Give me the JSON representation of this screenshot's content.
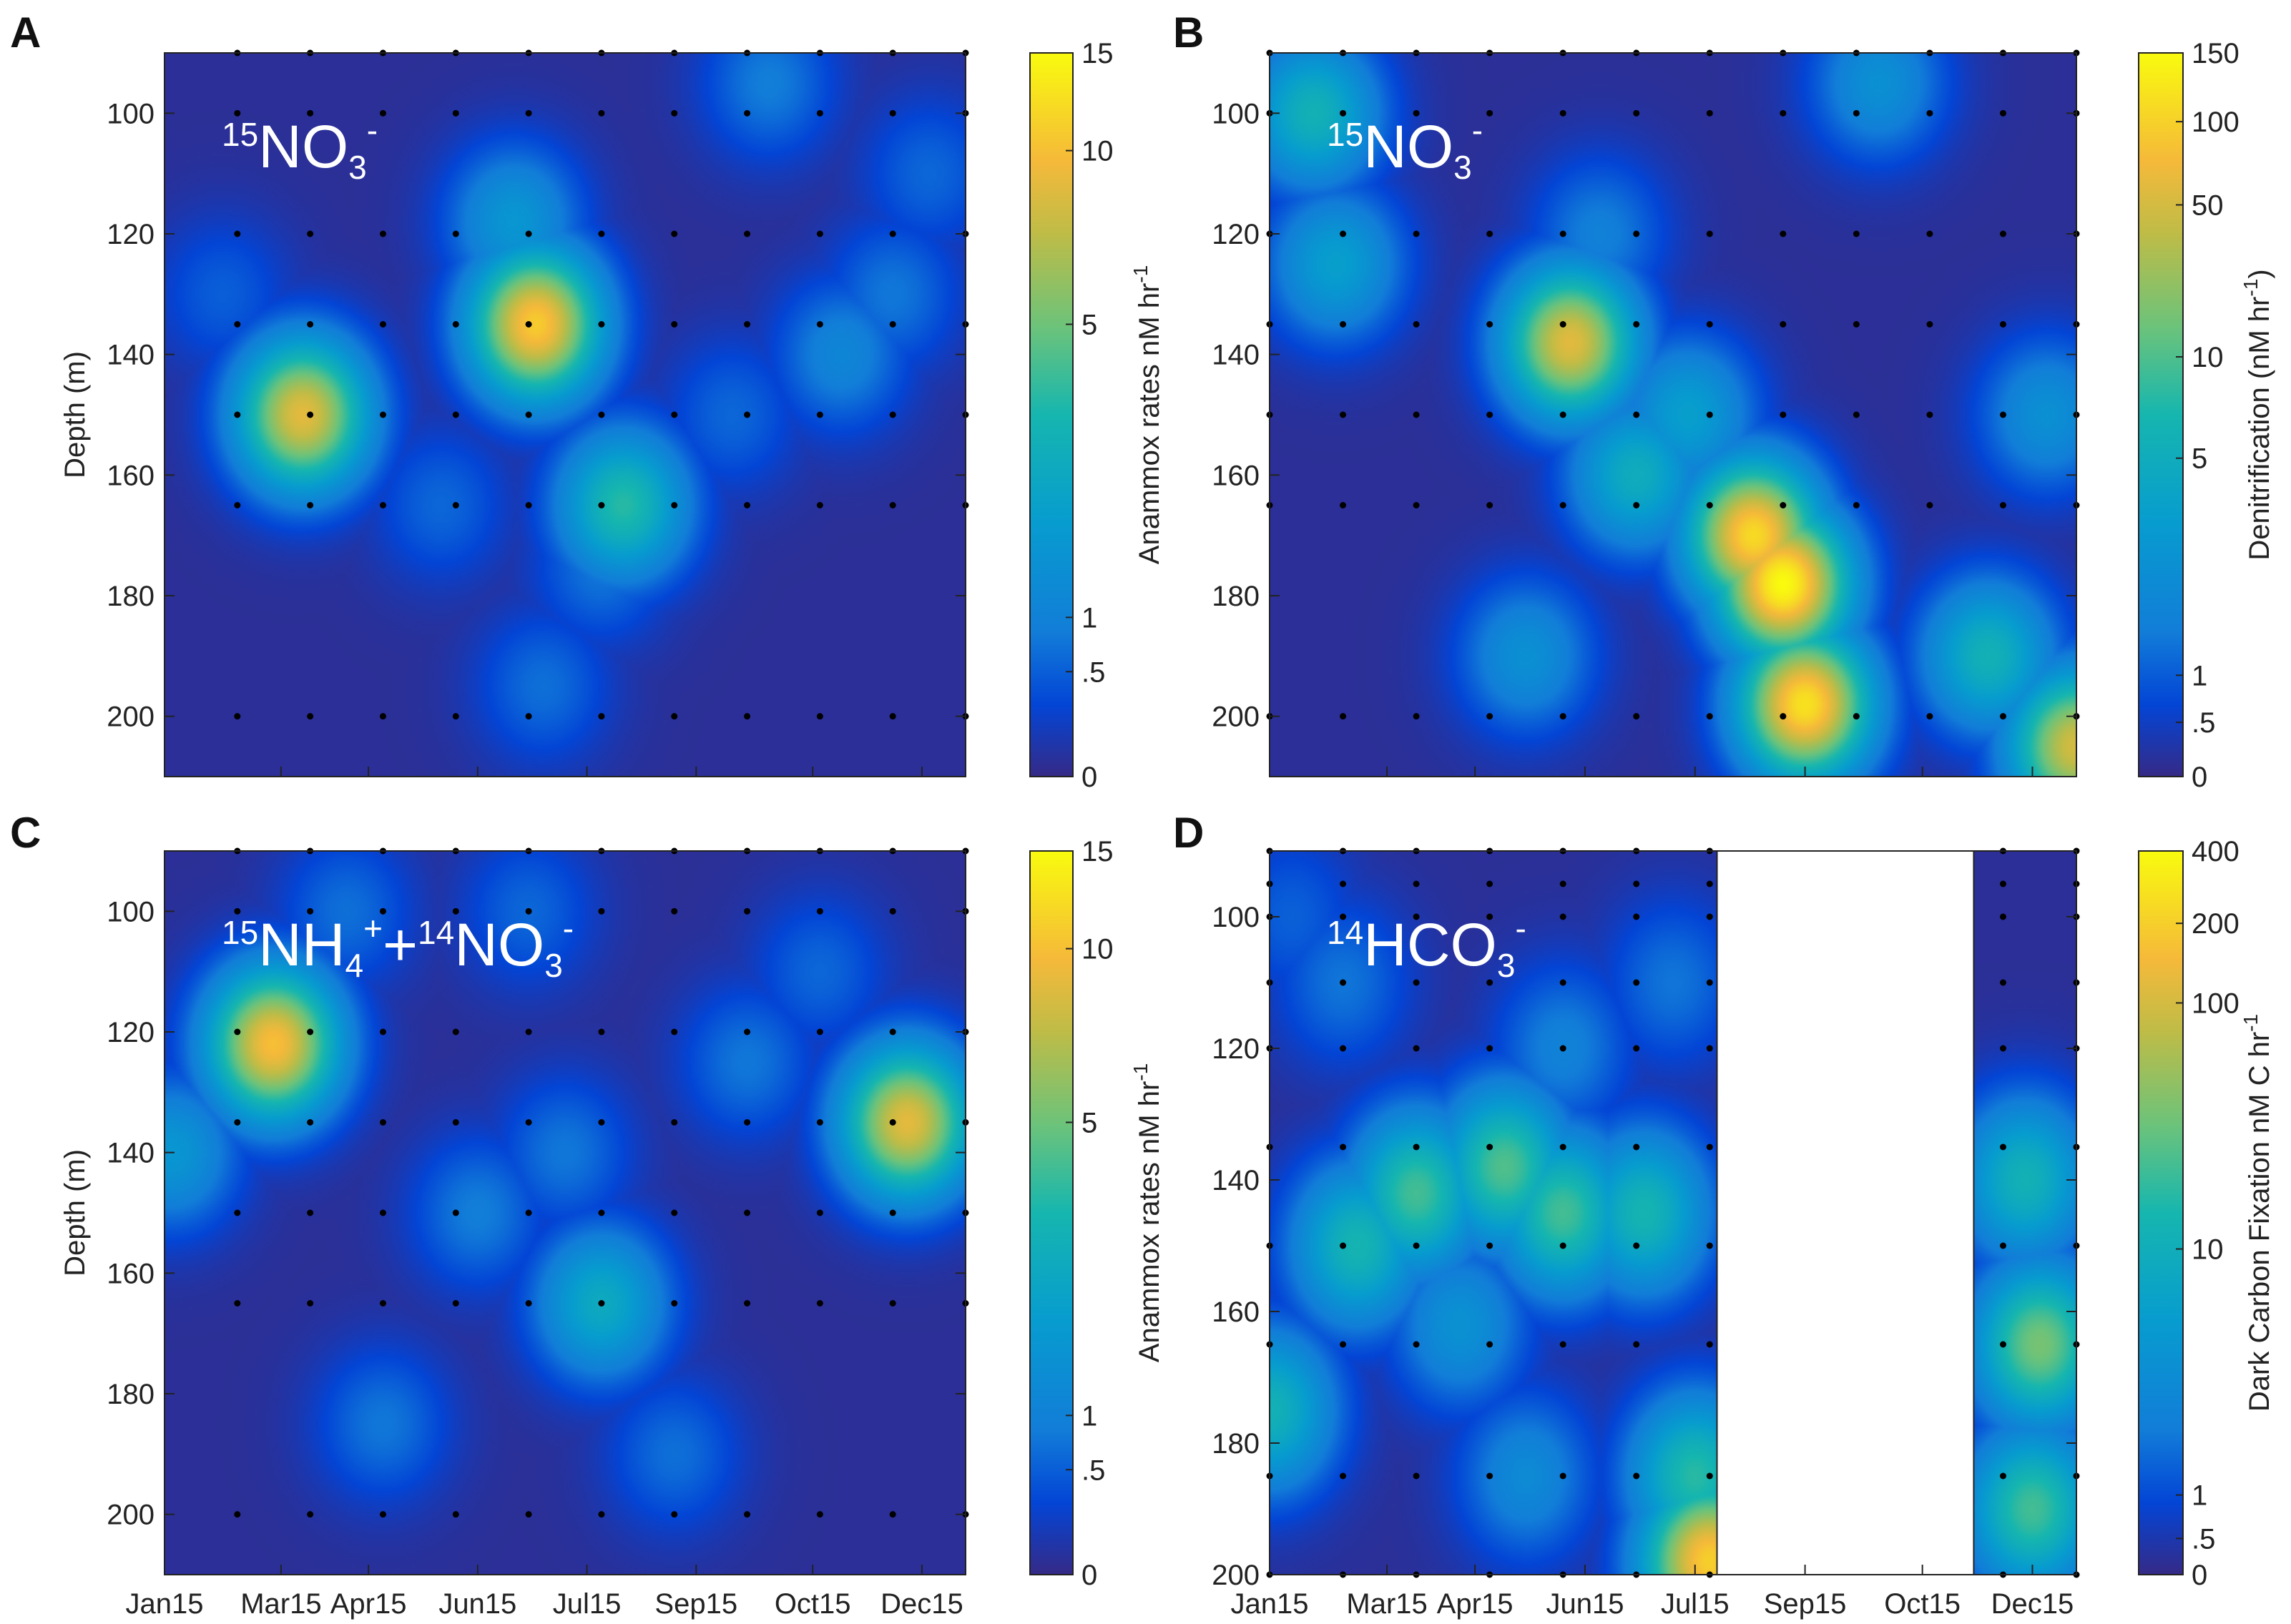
{
  "chart_data": [
    {
      "id": "A",
      "panel_letter": "A",
      "type": "heatmap",
      "label": {
        "iso_a": "15",
        "main_a": "NO",
        "sub_a": "3",
        "sup_a": "-",
        "join": "",
        "iso_b": "",
        "main_b": "",
        "sub_b": "",
        "sup_b": ""
      },
      "ylabel": "Depth (m)",
      "ylim": [
        90,
        210
      ],
      "yticks": [
        "100",
        "120",
        "140",
        "160",
        "180",
        "200"
      ],
      "xticks": [],
      "colorbar": {
        "label": "Anammox rates nM hr",
        "label_sup": "-1",
        "ticks": [
          "0",
          ".5",
          "1",
          "5",
          "10",
          "15"
        ],
        "tick_pos": [
          0,
          0.145,
          0.22,
          0.625,
          0.865,
          1.0
        ]
      },
      "blank_region": null,
      "hotspots": [
        {
          "month": 6.1,
          "depth": 135,
          "value": 11
        },
        {
          "month": 2.9,
          "depth": 150,
          "value": 9
        },
        {
          "month": 7.3,
          "depth": 165,
          "value": 4
        },
        {
          "month": 5.8,
          "depth": 118,
          "value": 2
        },
        {
          "month": 10.3,
          "depth": 140,
          "value": 1.2
        },
        {
          "month": 9.3,
          "depth": 95,
          "value": 0.9
        },
        {
          "month": 11.0,
          "depth": 130,
          "value": 0.8
        },
        {
          "month": 6.2,
          "depth": 195,
          "value": 0.7
        },
        {
          "month": 7.0,
          "depth": 175,
          "value": 0.8
        },
        {
          "month": 8.8,
          "depth": 150,
          "value": 0.6
        },
        {
          "month": 4.8,
          "depth": 165,
          "value": 0.6
        },
        {
          "month": 1.8,
          "depth": 130,
          "value": 0.5
        },
        {
          "month": 11.5,
          "depth": 110,
          "value": 0.6
        }
      ],
      "sample_dates": [
        2.0,
        3.0,
        4.0,
        5.0,
        6.0,
        7.0,
        8.0,
        9.0,
        10.0,
        11.0,
        12.0
      ],
      "sample_depths": [
        90,
        100,
        120,
        135,
        150,
        165,
        200
      ]
    },
    {
      "id": "B",
      "panel_letter": "B",
      "type": "heatmap",
      "label": {
        "iso_a": "15",
        "main_a": "NO",
        "sub_a": "3",
        "sup_a": "-",
        "join": "",
        "iso_b": "",
        "main_b": "",
        "sub_b": "",
        "sup_b": ""
      },
      "ylabel": "",
      "ylim": [
        90,
        210
      ],
      "yticks": [
        "100",
        "120",
        "140",
        "160",
        "180",
        "200"
      ],
      "xticks": [],
      "colorbar": {
        "label": "Denitrification (nM hr",
        "label_sup": "-1",
        "label_tail": ")",
        "ticks": [
          "0",
          ".5",
          "1",
          "5",
          "10",
          "50",
          "100",
          "150"
        ],
        "tick_pos": [
          0,
          0.075,
          0.14,
          0.44,
          0.58,
          0.79,
          0.905,
          1.0
        ]
      },
      "blank_region": null,
      "hotspots": [
        {
          "month": 8.0,
          "depth": 178,
          "value": 150
        },
        {
          "month": 8.3,
          "depth": 198,
          "value": 120
        },
        {
          "month": 7.6,
          "depth": 170,
          "value": 110
        },
        {
          "month": 5.1,
          "depth": 138,
          "value": 60
        },
        {
          "month": 12.0,
          "depth": 205,
          "value": 50
        },
        {
          "month": 1.6,
          "depth": 100,
          "value": 6
        },
        {
          "month": 1.9,
          "depth": 125,
          "value": 4
        },
        {
          "month": 10.8,
          "depth": 190,
          "value": 6
        },
        {
          "month": 6.0,
          "depth": 160,
          "value": 5
        },
        {
          "month": 4.5,
          "depth": 190,
          "value": 3
        },
        {
          "month": 9.3,
          "depth": 95,
          "value": 3
        },
        {
          "month": 11.6,
          "depth": 150,
          "value": 3
        },
        {
          "month": 6.7,
          "depth": 150,
          "value": 4
        },
        {
          "month": 5.5,
          "depth": 120,
          "value": 2
        }
      ],
      "sample_dates": [
        1.0,
        2.0,
        3.0,
        4.0,
        5.0,
        6.0,
        7.0,
        8.0,
        9.0,
        10.0,
        11.0,
        12.0
      ],
      "sample_depths": [
        90,
        100,
        120,
        135,
        150,
        165,
        200
      ]
    },
    {
      "id": "C",
      "panel_letter": "C",
      "type": "heatmap",
      "label": {
        "iso_a": "15",
        "main_a": "NH",
        "sub_a": "4",
        "sup_a": "+",
        "join": "+",
        "iso_b": "14",
        "main_b": "NO",
        "sub_b": "3",
        "sup_b": "-"
      },
      "ylabel": "Depth (m)",
      "ylim": [
        90,
        210
      ],
      "yticks": [
        "100",
        "120",
        "140",
        "160",
        "180",
        "200"
      ],
      "xticks": [
        "Jan15",
        "Mar15",
        "Apr15",
        "Jun15",
        "Jul15",
        "Sep15",
        "Oct15",
        "Dec15"
      ],
      "colorbar": {
        "label": "Anammox rates nM hr",
        "label_sup": "-1",
        "ticks": [
          "0",
          ".5",
          "1",
          "5",
          "10",
          "15"
        ],
        "tick_pos": [
          0,
          0.145,
          0.22,
          0.625,
          0.865,
          1.0
        ]
      },
      "blank_region": null,
      "hotspots": [
        {
          "month": 2.5,
          "depth": 122,
          "value": 10
        },
        {
          "month": 11.2,
          "depth": 135,
          "value": 9
        },
        {
          "month": 7.0,
          "depth": 165,
          "value": 3
        },
        {
          "month": 1.1,
          "depth": 140,
          "value": 2
        },
        {
          "month": 5.3,
          "depth": 150,
          "value": 0.9
        },
        {
          "month": 6.5,
          "depth": 140,
          "value": 0.8
        },
        {
          "month": 4.0,
          "depth": 185,
          "value": 0.8
        },
        {
          "month": 8.0,
          "depth": 190,
          "value": 0.7
        },
        {
          "month": 9.0,
          "depth": 125,
          "value": 0.8
        },
        {
          "month": 3.5,
          "depth": 100,
          "value": 0.7
        },
        {
          "month": 6.0,
          "depth": 100,
          "value": 0.6
        },
        {
          "month": 10.0,
          "depth": 110,
          "value": 0.6
        }
      ],
      "sample_dates": [
        2.0,
        3.0,
        4.0,
        5.0,
        6.0,
        7.0,
        8.0,
        9.0,
        10.0,
        11.0,
        12.0
      ],
      "sample_depths": [
        90,
        100,
        120,
        135,
        150,
        165,
        200
      ]
    },
    {
      "id": "D",
      "panel_letter": "D",
      "type": "heatmap",
      "label": {
        "iso_a": "14",
        "main_a": "HCO",
        "sub_a": "3",
        "sup_a": "-",
        "join": "",
        "iso_b": "",
        "main_b": "",
        "sub_b": "",
        "sup_b": ""
      },
      "ylabel": "",
      "ylim": [
        90,
        200
      ],
      "yticks": [
        "100",
        "120",
        "140",
        "160",
        "180",
        "200"
      ],
      "xticks": [
        "Jan15",
        "Mar15",
        "Apr15",
        "Jun15",
        "Jul15",
        "Sep15",
        "Oct15",
        "Dec15"
      ],
      "colorbar": {
        "label": "Dark Carbon Fixation nM C hr",
        "label_sup": "-1",
        "ticks": [
          "0",
          ".5",
          "1",
          "10",
          "100",
          "200",
          "400"
        ],
        "tick_pos": [
          0,
          0.05,
          0.11,
          0.45,
          0.79,
          0.9,
          1.0
        ]
      },
      "blank_region": [
        7.1,
        10.6
      ],
      "hotspots": [
        {
          "month": 3.0,
          "depth": 142,
          "value": 40
        },
        {
          "month": 4.2,
          "depth": 138,
          "value": 45
        },
        {
          "month": 5.0,
          "depth": 145,
          "value": 40
        },
        {
          "month": 2.2,
          "depth": 150,
          "value": 20
        },
        {
          "month": 6.1,
          "depth": 145,
          "value": 20
        },
        {
          "month": 7.0,
          "depth": 198,
          "value": 200
        },
        {
          "month": 6.8,
          "depth": 185,
          "value": 30
        },
        {
          "month": 1.0,
          "depth": 175,
          "value": 15
        },
        {
          "month": 11.5,
          "depth": 165,
          "value": 60
        },
        {
          "month": 11.4,
          "depth": 190,
          "value": 40
        },
        {
          "month": 11.3,
          "depth": 140,
          "value": 15
        },
        {
          "month": 3.6,
          "depth": 162,
          "value": 6
        },
        {
          "month": 5.0,
          "depth": 120,
          "value": 4
        },
        {
          "month": 2.0,
          "depth": 110,
          "value": 3
        },
        {
          "month": 4.5,
          "depth": 185,
          "value": 5
        },
        {
          "month": 6.5,
          "depth": 110,
          "value": 3
        },
        {
          "month": 1.3,
          "depth": 100,
          "value": 2
        }
      ],
      "sample_dates": [
        1.0,
        2.0,
        3.0,
        4.0,
        5.0,
        6.0,
        7.0,
        11.0,
        12.0
      ],
      "sample_depths": [
        90,
        95,
        100,
        110,
        120,
        135,
        150,
        165,
        185,
        200
      ]
    }
  ]
}
